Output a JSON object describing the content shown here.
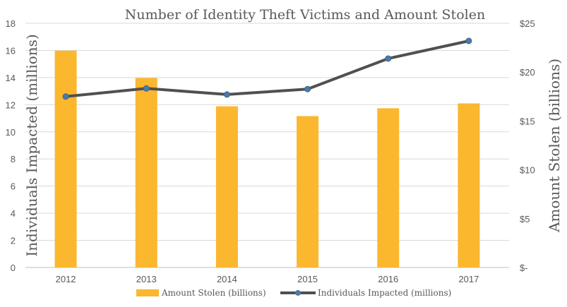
{
  "chart_data": {
    "type": "bar+line",
    "title": "Number of Identity Theft Victims and Amount Stolen",
    "categories": [
      "2012",
      "2013",
      "2014",
      "2015",
      "2016",
      "2017"
    ],
    "series": [
      {
        "name": "Amount Stolen (billions)",
        "type": "bar",
        "axis": "right",
        "color": "#FBB72E",
        "values": [
          22.2,
          19.4,
          16.5,
          15.5,
          16.3,
          16.8
        ]
      },
      {
        "name": "Individuals Impacted (millions)",
        "type": "line",
        "axis": "left",
        "color": "#505050",
        "marker_color": "#4E79A7",
        "values": [
          12.6,
          13.2,
          12.75,
          13.15,
          15.4,
          16.7
        ]
      }
    ],
    "ylabel_left": "Individuals Impacted (millions)",
    "ylabel_right": "Amount Stolen (billions)",
    "ylim_left": [
      0,
      18
    ],
    "yticks_left": [
      "0",
      "2",
      "4",
      "6",
      "8",
      "10",
      "12",
      "14",
      "16",
      "18"
    ],
    "ylim_right": [
      0,
      25
    ],
    "yticks_right": [
      "$-",
      "$5",
      "$10",
      "$15",
      "$20",
      "$25"
    ],
    "grid": true,
    "legend_placement": "bottom"
  }
}
